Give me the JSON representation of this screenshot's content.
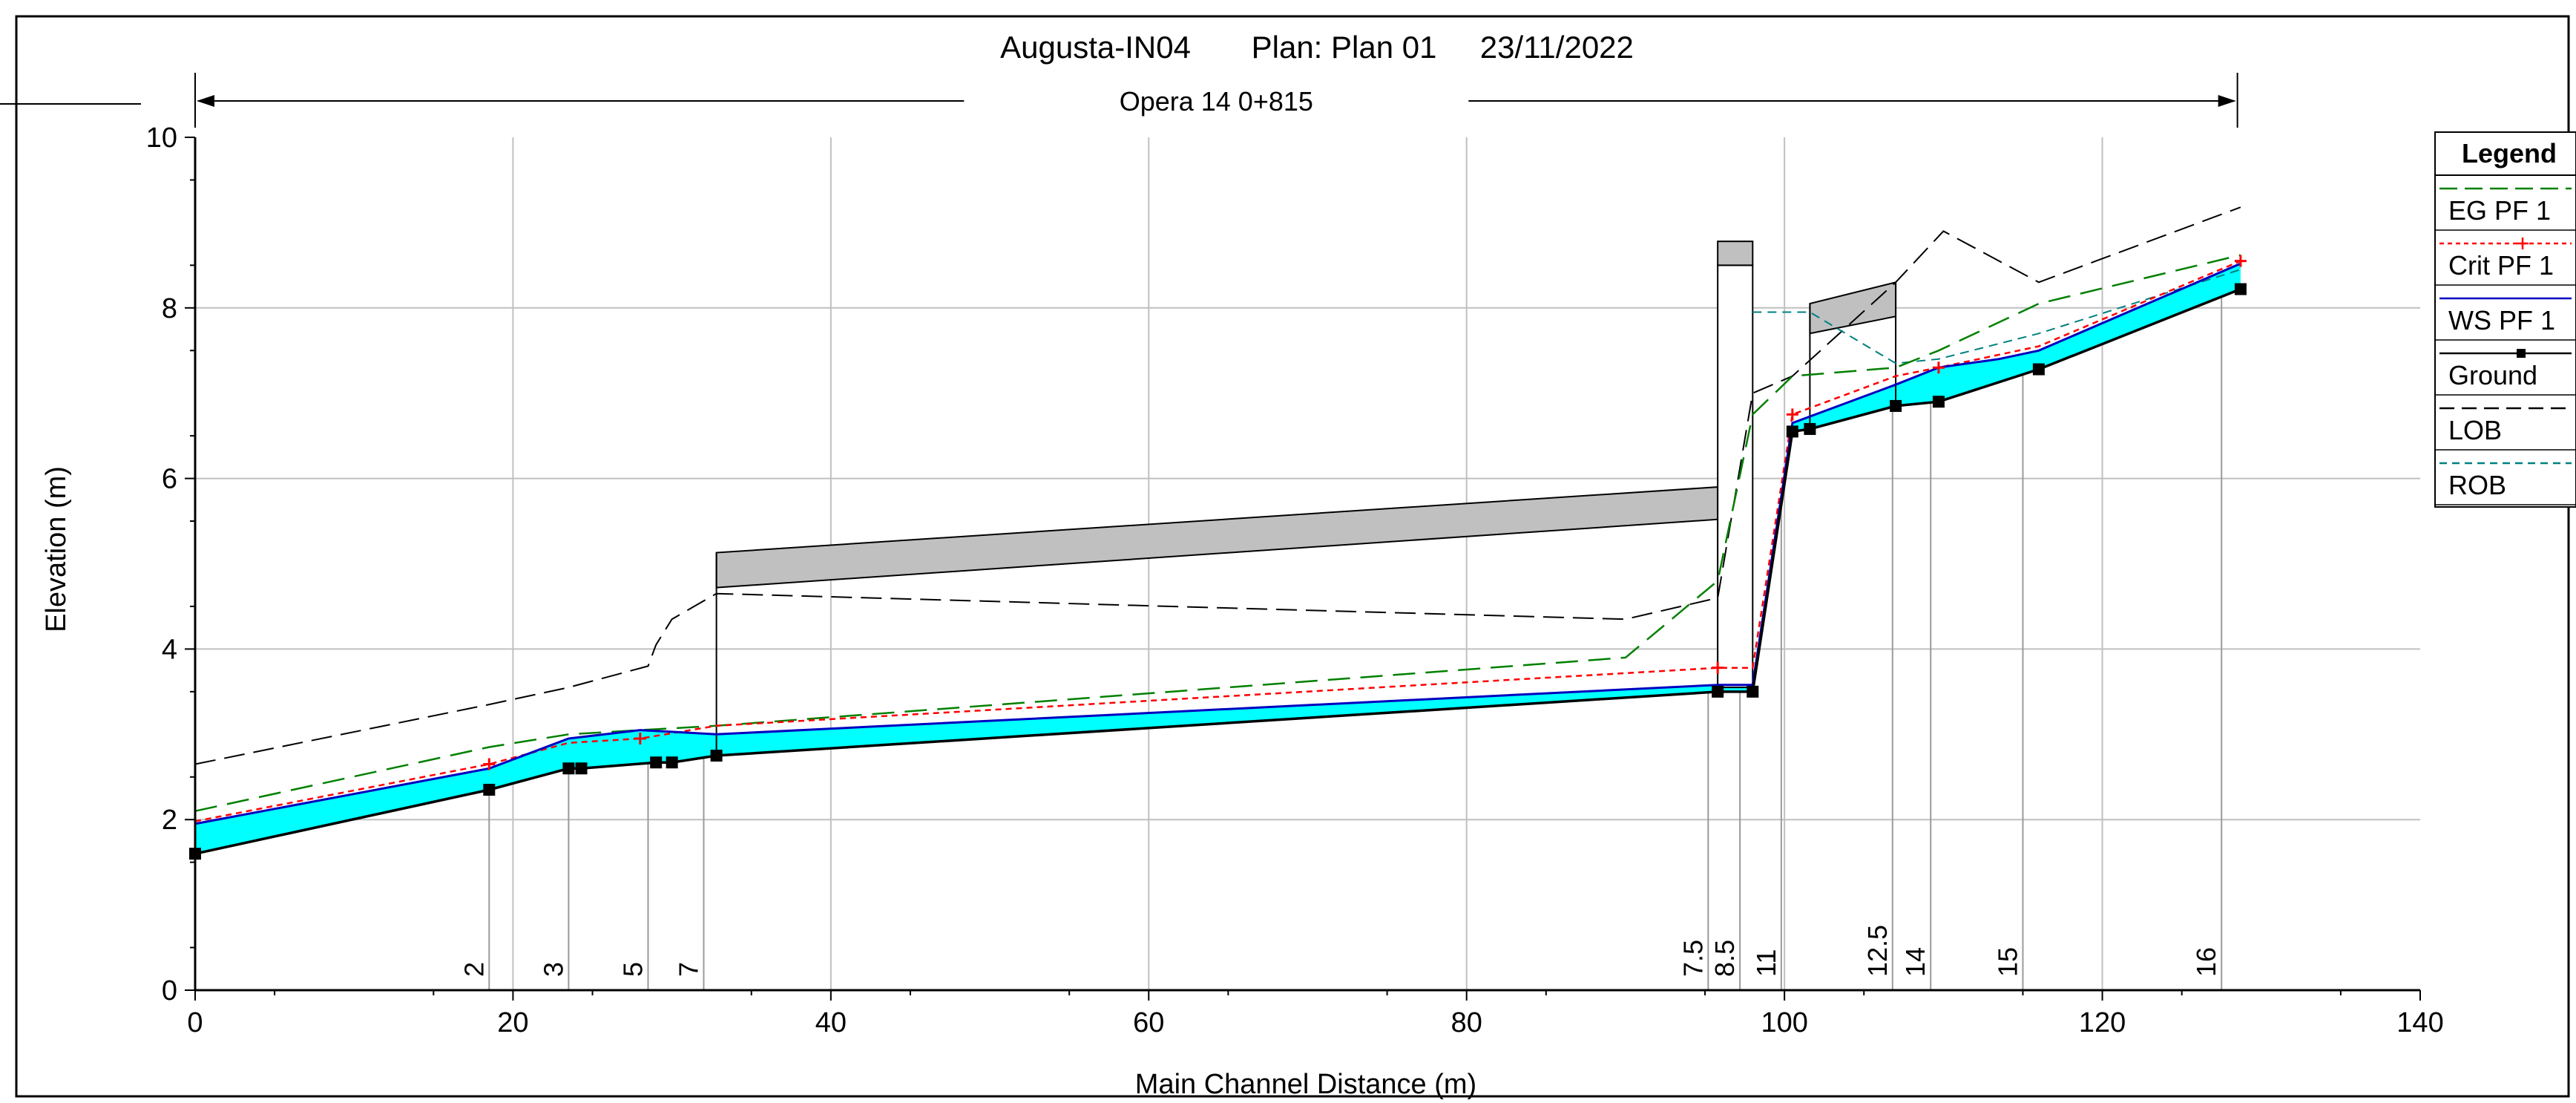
{
  "chart_data": {
    "type": "line",
    "title": "Augusta-IN04       Plan: Plan 01     23/11/2022",
    "xlabel": "Main Channel Distance (m)",
    "ylabel": "Elevation (m)",
    "xlim": [
      0,
      140
    ],
    "ylim": [
      0,
      10
    ],
    "x_ticks": [
      0,
      20,
      40,
      60,
      80,
      100,
      120,
      140
    ],
    "y_ticks": [
      0,
      2,
      4,
      6,
      8,
      10
    ],
    "grid": true,
    "reach_label": "Opera 14 0+815",
    "reach_range": [
      0,
      128.5
    ],
    "legend": {
      "title": "Legend",
      "position": "right",
      "entries": [
        "EG PF 1",
        "Crit PF 1",
        "WS PF 1",
        "Ground",
        "LOB",
        "ROB"
      ]
    },
    "colors": {
      "eg": "#008000",
      "crit": "#ff0000",
      "ws": "#0000c0",
      "water": "#00ffff",
      "ground": "#000000",
      "lob": "#000000",
      "rob": "#008080",
      "structure": "#c0c0c0",
      "grid": "#c0c0c0"
    },
    "river_stations": [
      {
        "label": "2",
        "x": 18.5
      },
      {
        "label": "3",
        "x": 23.5
      },
      {
        "label": "5",
        "x": 28.5
      },
      {
        "label": "7",
        "x": 32.0
      },
      {
        "label": "7.5",
        "x": 95.2
      },
      {
        "label": "8.5",
        "x": 97.2
      },
      {
        "label": "11",
        "x": 99.8
      },
      {
        "label": "12.5",
        "x": 106.8
      },
      {
        "label": "14",
        "x": 109.2
      },
      {
        "label": "15",
        "x": 115.0
      },
      {
        "label": "16",
        "x": 127.5
      }
    ],
    "series": [
      {
        "name": "Ground",
        "x": [
          0,
          18.5,
          23.5,
          24.3,
          29.0,
          30.0,
          32.8,
          95.8,
          98.0,
          100.5,
          101.6,
          107.0,
          109.7,
          116.0,
          128.7
        ],
        "y": [
          1.6,
          2.35,
          2.6,
          2.6,
          2.67,
          2.67,
          2.75,
          3.5,
          3.5,
          6.55,
          6.58,
          6.85,
          6.9,
          7.28,
          8.22
        ]
      },
      {
        "name": "WS PF 1",
        "x": [
          0,
          18.5,
          23.5,
          28.0,
          32.8,
          95.8,
          98.0,
          100.5,
          107.0,
          109.7,
          113.5,
          116.0,
          128.7
        ],
        "y": [
          1.95,
          2.6,
          2.95,
          3.05,
          3.0,
          3.58,
          3.58,
          6.65,
          7.1,
          7.3,
          7.4,
          7.5,
          8.52
        ]
      },
      {
        "name": "Crit PF 1",
        "x": [
          0,
          18.5,
          23.5,
          28.0,
          32.8,
          95.8,
          98.0,
          100.5,
          107.0,
          109.7,
          116.0,
          128.7
        ],
        "y": [
          1.98,
          2.65,
          2.9,
          2.95,
          3.1,
          3.78,
          3.78,
          6.75,
          7.2,
          7.3,
          7.55,
          8.55
        ]
      },
      {
        "name": "EG PF 1",
        "x": [
          0,
          18.5,
          23.5,
          28.0,
          32.8,
          90.0,
          95.8,
          98.0,
          100.5,
          107.0,
          109.7,
          116.0,
          128.7
        ],
        "y": [
          2.1,
          2.85,
          3.0,
          3.05,
          3.1,
          3.9,
          4.8,
          6.75,
          7.2,
          7.3,
          7.5,
          8.05,
          8.62
        ]
      },
      {
        "name": "LOB",
        "x": [
          0,
          18.5,
          23.5,
          28.5,
          29.0,
          30.0,
          32.8,
          90.0,
          95.8,
          98.0,
          100.5,
          107.0,
          110.0,
          116.0,
          128.7
        ],
        "y": [
          2.65,
          3.35,
          3.55,
          3.8,
          4.05,
          4.35,
          4.65,
          4.35,
          4.6,
          7.0,
          7.2,
          8.3,
          8.9,
          8.3,
          9.18
        ]
      },
      {
        "name": "ROB",
        "x": [
          98.0,
          101.6,
          107.0,
          109.7,
          116.0,
          128.7
        ],
        "y": [
          7.95,
          7.95,
          7.35,
          7.4,
          7.7,
          8.45
        ]
      }
    ],
    "structures": [
      {
        "type": "bridge",
        "x_start": 32.8,
        "x_end": 95.8,
        "low_chord": [
          4.72,
          5.52
        ],
        "high_chord": [
          5.13,
          5.9
        ]
      },
      {
        "type": "pier",
        "x_start": 95.8,
        "x_end": 98.0,
        "low": 3.55,
        "top": 8.5,
        "cap_top": 8.78
      },
      {
        "type": "bridge",
        "x_start": 101.6,
        "x_end": 107.0,
        "low_chord": [
          7.7,
          7.9
        ],
        "high_chord": [
          8.05,
          8.3
        ]
      }
    ]
  }
}
